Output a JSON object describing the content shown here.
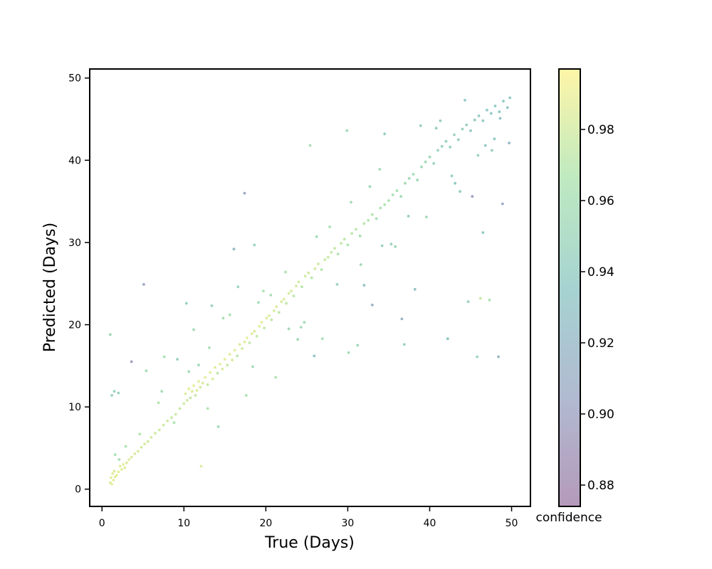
{
  "chart_data": {
    "type": "scatter",
    "title": "",
    "xlabel": "True (Days)",
    "ylabel": "Predicted (Days)",
    "xlim": [
      -1.5,
      52.3
    ],
    "ylim": [
      -2.1,
      51.1
    ],
    "xticks": [
      "0",
      "10",
      "20",
      "30",
      "40",
      "50"
    ],
    "yticks": [
      "0",
      "10",
      "20",
      "30",
      "40",
      "50"
    ],
    "grid": false,
    "marker_alpha": 0.5,
    "colormap": "viridis",
    "colorbar": {
      "label": "confidence",
      "range": [
        0.874,
        0.997
      ],
      "ticks": [
        "0.88",
        "0.90",
        "0.92",
        "0.94",
        "0.96",
        "0.98"
      ]
    },
    "series": [
      {
        "x": [
          1.0,
          1.1,
          1.2,
          1.3,
          1.4,
          1.5,
          1.6,
          1.8,
          2.0,
          2.2,
          2.4,
          2.6,
          2.8,
          3.0,
          3.3,
          3.6,
          4.0,
          4.4,
          4.8,
          5.2,
          5.6,
          6.0,
          6.5,
          7.0,
          7.5,
          8.0,
          8.5,
          9.0,
          9.5,
          10.0,
          10.2,
          10.4,
          10.6,
          10.8,
          11.0,
          11.2,
          11.4,
          11.6,
          11.8,
          12.0,
          12.3,
          12.6,
          12.9,
          13.2,
          13.5,
          13.8,
          14.1,
          14.4,
          14.7,
          15.0,
          15.3,
          15.6,
          15.9,
          16.2,
          16.5,
          16.8,
          17.1,
          17.4,
          17.7,
          18.0,
          18.3,
          18.6,
          18.9,
          19.2,
          19.5,
          19.8,
          20.1,
          20.4,
          20.7,
          21.0,
          21.3,
          21.6,
          21.9,
          22.2,
          22.5,
          22.8,
          23.1,
          23.4,
          23.7,
          24.0,
          24.4,
          24.8,
          25.2,
          25.6,
          26.0,
          26.4,
          26.8,
          27.2,
          27.6,
          28.0,
          28.4,
          28.8,
          29.2,
          29.6,
          30.0,
          30.5,
          31.0,
          31.5,
          32.0,
          32.5,
          33.0,
          33.5,
          34.0,
          34.5,
          35.0,
          35.5,
          36.0,
          36.5,
          37.0,
          37.5,
          38.0,
          38.5,
          39.0,
          39.5,
          40.0,
          40.5,
          41.0,
          41.5,
          42.0,
          42.5,
          43.0,
          43.5,
          44.0,
          44.5,
          45.0,
          45.5,
          46.0,
          46.5,
          47.0,
          47.5,
          48.0,
          48.5,
          49.0,
          49.5,
          49.8,
          1.0,
          1.2,
          1.5,
          2.0,
          3.6,
          5.1,
          5.4,
          7.6,
          9.2,
          10.3,
          11.2,
          12.1,
          13.4,
          14.2,
          16.1,
          16.6,
          17.4,
          18.6,
          21.2,
          22.8,
          25.4,
          25.9,
          26.9,
          29.9,
          30.1,
          31.2,
          32.0,
          33.0,
          34.5,
          36.6,
          36.9,
          38.2,
          42.2,
          44.7,
          45.2,
          45.8,
          46.2,
          46.5,
          47.3,
          48.4,
          48.9,
          49.7,
          1.6,
          2.1,
          6.9,
          8.8,
          10.6,
          12.9,
          14.8,
          17.6,
          19.1,
          22.4,
          24.3,
          27.8,
          31.6,
          33.9,
          35.8,
          39.6,
          41.3,
          43.7,
          45.9,
          47.6,
          2.9,
          4.6,
          7.3,
          11.8,
          15.6,
          18.4,
          20.6,
          23.9,
          26.2,
          28.7,
          32.7,
          34.2,
          37.4,
          40.8,
          43.1,
          46.8,
          48.6,
          13.1,
          19.7,
          24.7,
          30.4,
          35.3,
          38.9,
          42.7,
          44.3,
          47.9
        ],
        "y": [
          0.8,
          1.4,
          0.6,
          1.9,
          1.1,
          2.2,
          1.5,
          1.7,
          2.1,
          2.8,
          2.4,
          3.0,
          2.6,
          3.2,
          3.6,
          3.9,
          4.3,
          4.6,
          5.1,
          5.5,
          5.8,
          6.3,
          6.8,
          7.2,
          7.8,
          8.3,
          8.7,
          9.1,
          9.8,
          10.4,
          11.6,
          10.8,
          12.2,
          11.1,
          11.9,
          12.6,
          11.4,
          12.0,
          13.1,
          12.4,
          12.9,
          13.6,
          12.7,
          14.2,
          13.4,
          14.8,
          14.1,
          15.2,
          14.6,
          15.8,
          15.1,
          16.4,
          15.7,
          16.9,
          16.2,
          17.6,
          17.1,
          17.9,
          18.4,
          17.8,
          18.9,
          19.2,
          18.6,
          19.8,
          20.3,
          19.6,
          20.8,
          21.1,
          20.6,
          21.7,
          22.2,
          21.5,
          22.8,
          23.1,
          22.6,
          23.8,
          24.1,
          23.5,
          24.7,
          25.2,
          24.6,
          25.9,
          26.3,
          25.7,
          26.8,
          27.4,
          26.7,
          27.9,
          28.2,
          28.8,
          29.3,
          28.6,
          29.9,
          30.4,
          29.7,
          31.1,
          31.6,
          30.8,
          32.3,
          32.7,
          33.4,
          32.9,
          34.2,
          34.6,
          35.1,
          35.8,
          36.3,
          35.6,
          37.2,
          37.8,
          38.3,
          37.6,
          39.2,
          39.8,
          40.4,
          39.6,
          41.2,
          41.7,
          42.3,
          41.6,
          43.1,
          42.5,
          43.8,
          44.3,
          43.6,
          44.9,
          45.4,
          44.8,
          46.1,
          45.7,
          46.6,
          45.9,
          47.2,
          46.4,
          47.6,
          18.8,
          11.4,
          11.9,
          11.7,
          15.5,
          24.9,
          14.4,
          16.1,
          15.8,
          22.6,
          19.4,
          2.8,
          22.3,
          7.6,
          29.2,
          24.6,
          36.0,
          29.7,
          13.6,
          19.5,
          41.8,
          16.2,
          18.3,
          43.6,
          16.6,
          17.5,
          24.8,
          22.4,
          43.2,
          20.7,
          17.6,
          24.3,
          18.3,
          22.8,
          35.6,
          16.1,
          23.2,
          31.2,
          23.0,
          16.1,
          34.7,
          42.1,
          4.2,
          3.6,
          10.5,
          8.1,
          14.3,
          9.8,
          20.8,
          11.4,
          22.7,
          26.4,
          19.7,
          31.9,
          27.3,
          38.9,
          29.5,
          33.1,
          44.8,
          36.2,
          40.6,
          41.2,
          5.2,
          6.7,
          11.9,
          15.1,
          21.2,
          14.9,
          23.6,
          18.2,
          30.7,
          24.9,
          36.8,
          29.6,
          33.2,
          43.9,
          37.2,
          41.8,
          45.1,
          17.2,
          24.1,
          20.3,
          34.9,
          29.8,
          44.2,
          38.1,
          47.3,
          42.6
        ],
        "c": [
          0.985,
          0.987,
          0.989,
          0.986,
          0.988,
          0.984,
          0.987,
          0.989,
          0.988,
          0.986,
          0.985,
          0.987,
          0.986,
          0.985,
          0.984,
          0.983,
          0.983,
          0.982,
          0.981,
          0.982,
          0.98,
          0.981,
          0.979,
          0.98,
          0.978,
          0.979,
          0.977,
          0.978,
          0.976,
          0.978,
          0.985,
          0.979,
          0.986,
          0.975,
          0.983,
          0.987,
          0.976,
          0.984,
          0.986,
          0.981,
          0.984,
          0.987,
          0.975,
          0.988,
          0.982,
          0.986,
          0.974,
          0.987,
          0.983,
          0.988,
          0.976,
          0.986,
          0.981,
          0.985,
          0.973,
          0.984,
          0.98,
          0.986,
          0.987,
          0.974,
          0.985,
          0.984,
          0.976,
          0.985,
          0.986,
          0.975,
          0.984,
          0.985,
          0.973,
          0.983,
          0.984,
          0.972,
          0.982,
          0.984,
          0.973,
          0.981,
          0.983,
          0.971,
          0.98,
          0.981,
          0.97,
          0.979,
          0.98,
          0.969,
          0.978,
          0.979,
          0.968,
          0.977,
          0.978,
          0.976,
          0.975,
          0.966,
          0.974,
          0.973,
          0.965,
          0.972,
          0.971,
          0.963,
          0.97,
          0.969,
          0.968,
          0.96,
          0.966,
          0.965,
          0.964,
          0.962,
          0.961,
          0.955,
          0.96,
          0.958,
          0.957,
          0.952,
          0.955,
          0.953,
          0.952,
          0.948,
          0.95,
          0.949,
          0.947,
          0.944,
          0.946,
          0.942,
          0.944,
          0.943,
          0.94,
          0.941,
          0.94,
          0.938,
          0.939,
          0.936,
          0.938,
          0.935,
          0.937,
          0.934,
          0.936,
          0.952,
          0.948,
          0.95,
          0.946,
          0.898,
          0.905,
          0.958,
          0.962,
          0.945,
          0.943,
          0.955,
          0.983,
          0.947,
          0.955,
          0.925,
          0.95,
          0.903,
          0.948,
          0.965,
          0.955,
          0.962,
          0.935,
          0.962,
          0.954,
          0.958,
          0.952,
          0.93,
          0.915,
          0.94,
          0.915,
          0.948,
          0.931,
          0.935,
          0.948,
          0.902,
          0.95,
          0.975,
          0.938,
          0.965,
          0.918,
          0.906,
          0.92,
          0.962,
          0.96,
          0.968,
          0.965,
          0.955,
          0.968,
          0.962,
          0.965,
          0.96,
          0.966,
          0.958,
          0.962,
          0.955,
          0.958,
          0.952,
          0.955,
          0.945,
          0.94,
          0.948,
          0.944,
          0.966,
          0.968,
          0.96,
          0.955,
          0.962,
          0.958,
          0.96,
          0.955,
          0.958,
          0.95,
          0.952,
          0.948,
          0.945,
          0.94,
          0.938,
          0.935,
          0.93,
          0.962,
          0.965,
          0.955,
          0.958,
          0.95,
          0.945,
          0.942,
          0.938,
          0.936
        ]
      }
    ]
  }
}
